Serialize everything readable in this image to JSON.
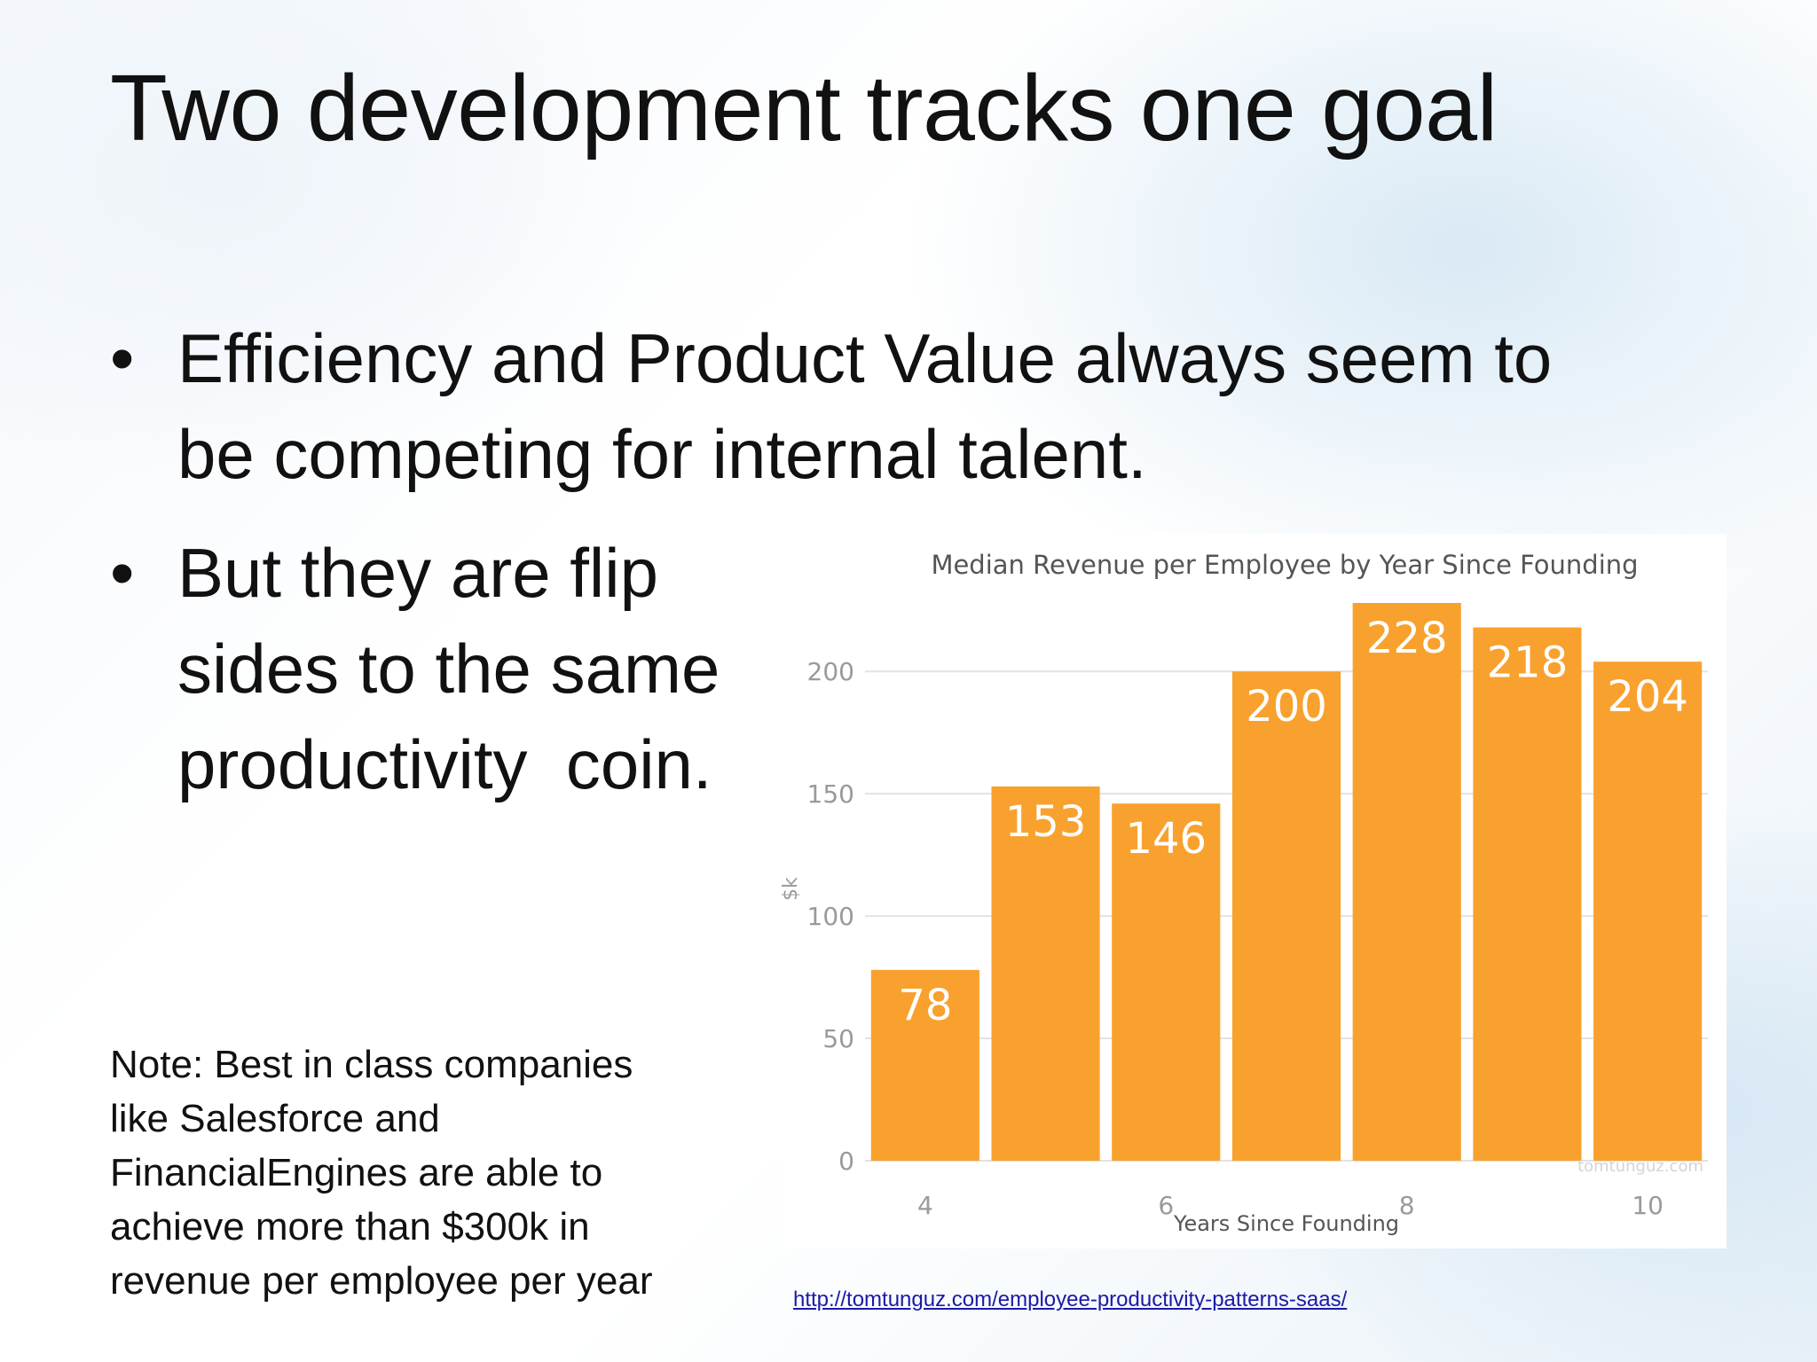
{
  "slide": {
    "title": "Two development tracks one goal",
    "bullet_symbol": "•",
    "bullets": [
      {
        "lines": [
          "Efficiency and Product Value always seem to",
          "be competing for internal talent."
        ]
      },
      {
        "lines": [
          "But they are flip",
          "sides to the same",
          "productivity  coin."
        ]
      }
    ],
    "note_lines": [
      "Note: Best in class companies",
      "like Salesforce and",
      "FinancialEngines are able to",
      "achieve more than $300k in",
      "revenue per employee per year"
    ],
    "source_link": "http://tomtunguz.com/employee-productivity-patterns-saas/"
  },
  "chart_data": {
    "type": "bar",
    "title": "Median Revenue per Employee by Year Since Founding",
    "xlabel": "Years Since Founding",
    "ylabel": "$k",
    "x": [
      4,
      5,
      6,
      7,
      8,
      9,
      10
    ],
    "values": [
      78,
      153,
      146,
      200,
      228,
      218,
      204
    ],
    "data_labels": [
      "78",
      "153",
      "146",
      "200",
      "228",
      "218",
      "204"
    ],
    "xticks": [
      4,
      6,
      8,
      10
    ],
    "xtick_labels": [
      "4",
      "6",
      "8",
      "10"
    ],
    "yticks": [
      0,
      50,
      100,
      150,
      200
    ],
    "ytick_labels": [
      "0",
      "50",
      "100",
      "150",
      "200"
    ],
    "ylim": [
      0,
      228
    ],
    "xlim": [
      3.5,
      10.5
    ],
    "grid": true,
    "watermark": "tomtunguz.com",
    "colors": {
      "bar": "#f9a12e",
      "label": "#ffffff",
      "grid": "#e2e2e2",
      "axis_text": "#9a9a9a",
      "title": "#555555"
    }
  }
}
